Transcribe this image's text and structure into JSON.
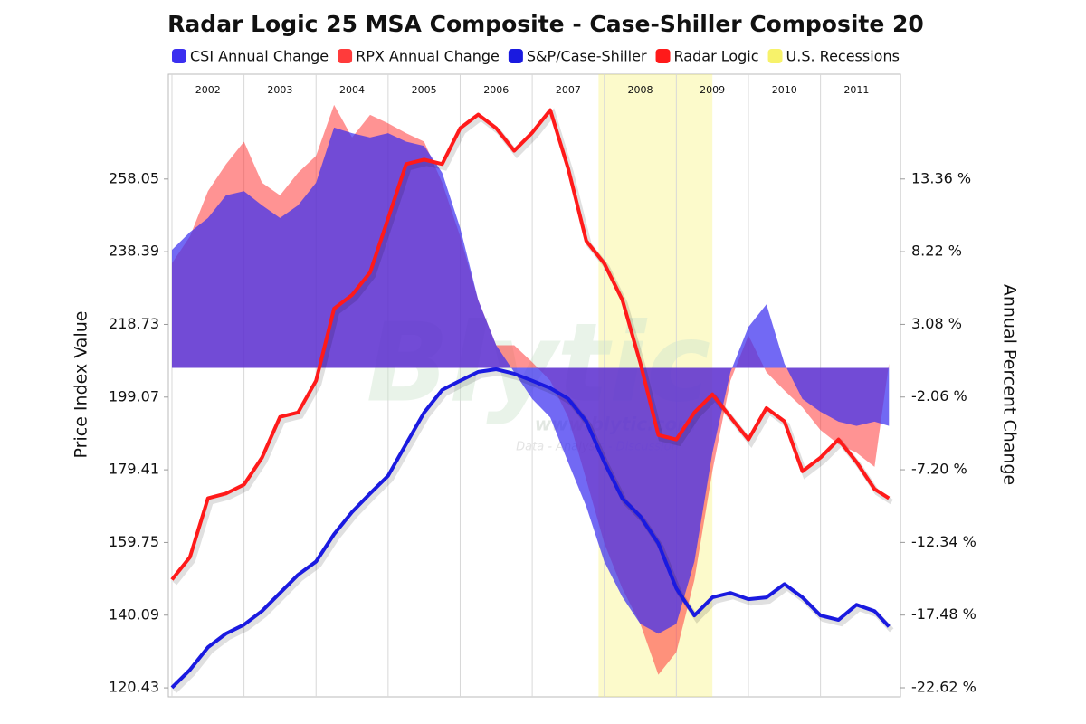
{
  "chart_data": {
    "type": "line",
    "title": "Radar Logic 25 MSA Composite - Case-Shiller Composite 20",
    "y_label": "Price Index Value",
    "y2_label": "Annual Percent Change",
    "watermark": {
      "logo": "Blytic",
      "url": "www.blytic.com",
      "tagline": "Data - Analysis - Discussion"
    },
    "x": [
      2002.0,
      2002.25,
      2002.5,
      2002.75,
      2003.0,
      2003.25,
      2003.5,
      2003.75,
      2004.0,
      2004.25,
      2004.5,
      2004.75,
      2005.0,
      2005.25,
      2005.5,
      2005.75,
      2006.0,
      2006.25,
      2006.5,
      2006.75,
      2007.0,
      2007.25,
      2007.5,
      2007.75,
      2008.0,
      2008.25,
      2008.5,
      2008.75,
      2009.0,
      2009.25,
      2009.5,
      2009.75,
      2010.0,
      2010.25,
      2010.5,
      2010.75,
      2011.0,
      2011.25,
      2011.5,
      2011.75,
      2011.95
    ],
    "xlim": [
      2001.95,
      2012.11
    ],
    "xticks": [
      2002,
      2003,
      2004,
      2005,
      2006,
      2007,
      2008,
      2009,
      2010,
      2011
    ],
    "ylim": [
      118.0,
      286.4
    ],
    "yticks": [
      120.43,
      140.09,
      159.75,
      179.41,
      199.07,
      218.73,
      238.39,
      258.05
    ],
    "y2lim": [
      -23.26,
      20.77
    ],
    "y2ticks": [
      {
        "value": -22.62,
        "label": "-22.62 %"
      },
      {
        "value": -17.48,
        "label": "-17.48 %"
      },
      {
        "value": -12.34,
        "label": "-12.34 %"
      },
      {
        "value": -7.2,
        "label": "-7.20 %"
      },
      {
        "value": -2.06,
        "label": "-2.06 %"
      },
      {
        "value": 3.08,
        "label": "3.08 %"
      },
      {
        "value": 8.22,
        "label": "8.22 %"
      },
      {
        "value": 13.36,
        "label": "13.36 %"
      }
    ],
    "grid": "x",
    "series": [
      {
        "name": "CSI Annual Change",
        "kind": "area",
        "axis": "y2",
        "color": "#3b2ff0",
        "values": [
          8.35,
          9.6,
          10.6,
          12.2,
          12.5,
          11.5,
          10.6,
          11.5,
          13.1,
          17.0,
          16.6,
          16.3,
          16.6,
          16.0,
          15.7,
          13.8,
          9.9,
          4.8,
          1.6,
          -0.3,
          -2.2,
          -3.5,
          -6.7,
          -9.8,
          -13.7,
          -16.2,
          -18.1,
          -18.8,
          -18.1,
          -13.7,
          -6.0,
          -0.3,
          2.9,
          4.5,
          0.3,
          -2.2,
          -3.1,
          -3.8,
          -4.1,
          -3.8,
          -4.1
        ]
      },
      {
        "name": "RPX Annual Change",
        "kind": "area",
        "axis": "y2",
        "color": "#ff3b3b",
        "values": [
          7.4,
          9.3,
          12.5,
          14.4,
          16.0,
          13.1,
          12.2,
          13.8,
          15.0,
          18.6,
          16.3,
          17.9,
          17.3,
          16.6,
          16.0,
          13.1,
          9.3,
          4.8,
          1.6,
          1.6,
          0.4,
          -0.9,
          -3.5,
          -7.9,
          -12.4,
          -15.6,
          -18.1,
          -21.7,
          -20.1,
          -15.0,
          -7.3,
          -0.9,
          2.3,
          -0.3,
          -1.6,
          -2.8,
          -4.4,
          -5.4,
          -6.0,
          -7.0,
          0.3
        ]
      },
      {
        "name": "S&P/Case-Shiller",
        "kind": "line",
        "axis": "y",
        "color": "#1a1ae0",
        "values": [
          120.5,
          125.3,
          131.4,
          135.1,
          137.5,
          141.2,
          146.1,
          151.0,
          154.6,
          162.0,
          168.0,
          173.0,
          177.8,
          186.4,
          194.9,
          201.0,
          203.5,
          205.9,
          206.6,
          205.4,
          203.5,
          201.5,
          198.6,
          192.5,
          181.5,
          171.7,
          166.8,
          159.5,
          147.3,
          140.0,
          144.9,
          146.1,
          144.4,
          144.9,
          148.5,
          144.9,
          140.0,
          138.8,
          142.9,
          141.2,
          137.0
        ]
      },
      {
        "name": "Radar Logic",
        "kind": "line",
        "axis": "y",
        "color": "#ff1a1a",
        "values": [
          149.7,
          155.8,
          171.7,
          173.0,
          175.4,
          182.7,
          193.7,
          194.9,
          203.5,
          223.0,
          226.7,
          232.8,
          247.4,
          262.1,
          263.3,
          262.1,
          271.8,
          275.5,
          271.8,
          265.7,
          270.6,
          276.7,
          260.8,
          241.3,
          235.2,
          225.4,
          208.3,
          188.8,
          187.6,
          194.9,
          199.8,
          193.7,
          187.6,
          196.1,
          192.5,
          179.0,
          182.7,
          187.6,
          181.5,
          174.2,
          171.7
        ]
      }
    ],
    "bands": [
      {
        "name": "U.S. Recessions",
        "color": "#f7f26a",
        "x": [
          2007.92,
          2009.5
        ]
      }
    ]
  }
}
